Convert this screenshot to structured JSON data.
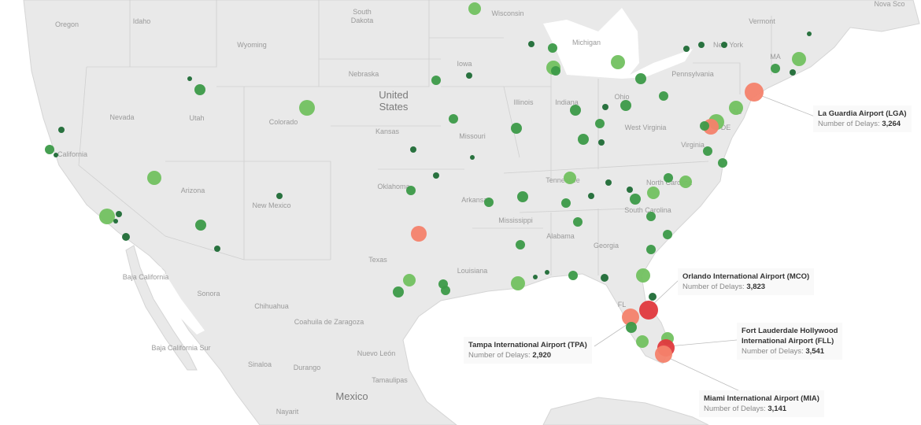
{
  "colors": {
    "ocean": "#ffffff",
    "land": "#e9e9e9",
    "border": "#c9c9c9",
    "low_delays_light_green": "#72c160",
    "mid_delays_green": "#3c9a48",
    "low_delays_dark_green": "#1f6b36",
    "high_delays_salmon": "#f4826b",
    "highest_delays_red": "#e0393e"
  },
  "place_labels": [
    "Oregon",
    "Idaho",
    "Wyoming",
    "South Dakota",
    "Wisconsin",
    "Michigan",
    "New York",
    "Vermont",
    "Nova Sco",
    "MA",
    "Nebraska",
    "Iowa",
    "Pennsylvania",
    "Nevada",
    "Utah",
    "Colorado",
    "Illinois",
    "Indiana",
    "Ohio",
    "California",
    "Kansas",
    "Missouri",
    "West Virginia",
    "Virginia",
    "Oklahoma",
    "Tennessee",
    "North Carolina",
    "Arkansas",
    "New Mexico",
    "Arizona",
    "South Carolina",
    "Mississippi",
    "Alabama",
    "Georgia",
    "Texas",
    "Louisiana",
    "Baja California",
    "Sonora",
    "Chihuahua",
    "Coahuila de Zaragoza",
    "Nuevo León",
    "Baja California Sur",
    "Sinaloa",
    "Durango",
    "Tamaulipas",
    "Nayarit",
    "NJ",
    "DE",
    "FL"
  ],
  "country_labels": [
    "United States",
    "Mexico"
  ],
  "annotations": [
    {
      "airport": "La Guardia Airport (LGA)",
      "metric": "Number of Delays:",
      "value": "3,264"
    },
    {
      "airport": "Orlando International Airport (MCO)",
      "metric": "Number of Delays:",
      "value": "3,823"
    },
    {
      "airport": "Tampa International Airport (TPA)",
      "metric": "Number of Delays:",
      "value": "2,920"
    },
    {
      "airport": "Fort Lauderdale Hollywood International Airport (FLL)",
      "airport_line1": "Fort Lauderdale Hollywood",
      "airport_line2": "International Airport (FLL)",
      "metric": "Number of Delays:",
      "value": "3,541"
    },
    {
      "airport": "Miami International Airport (MIA)",
      "metric": "Number of Delays:",
      "value": "3,141"
    }
  ]
}
